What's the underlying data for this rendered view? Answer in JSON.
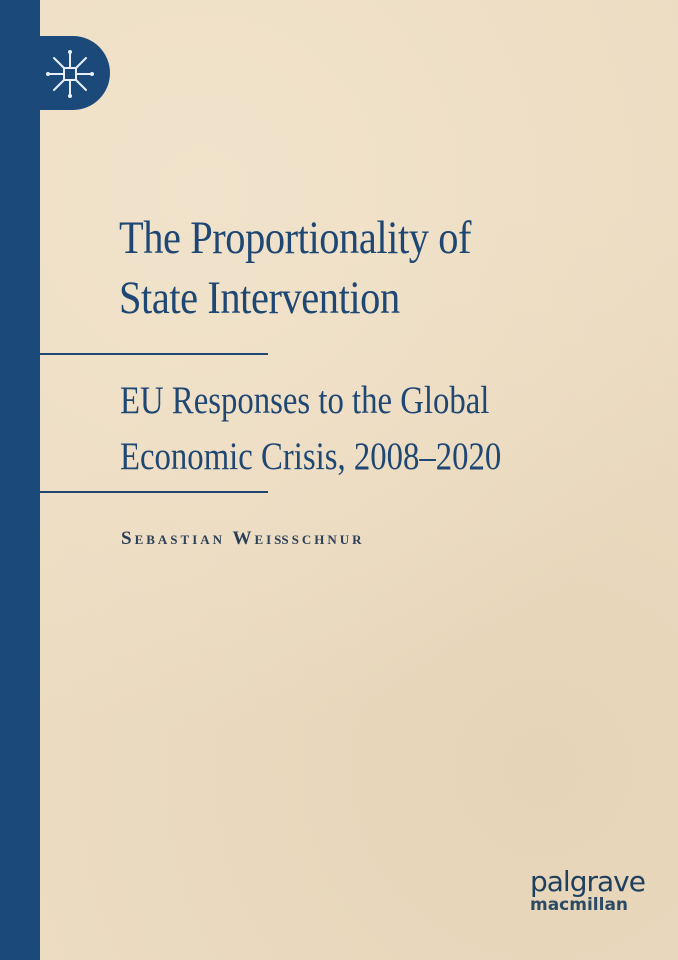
{
  "cover": {
    "title_line1": "The Proportionality of",
    "title_line2": "State Intervention",
    "subtitle_line1": "EU Responses to the Global",
    "subtitle_line2": "Economic Crisis, 2008–2020",
    "author": "Sebastian Weißschnur",
    "publisher_line1": "palgrave",
    "publisher_line2": "macmillan",
    "logo_icon": "palgrave-star-icon",
    "colors": {
      "spine": "#1b4a7a",
      "background": "#ecdcc2",
      "text": "#1f4773"
    }
  }
}
